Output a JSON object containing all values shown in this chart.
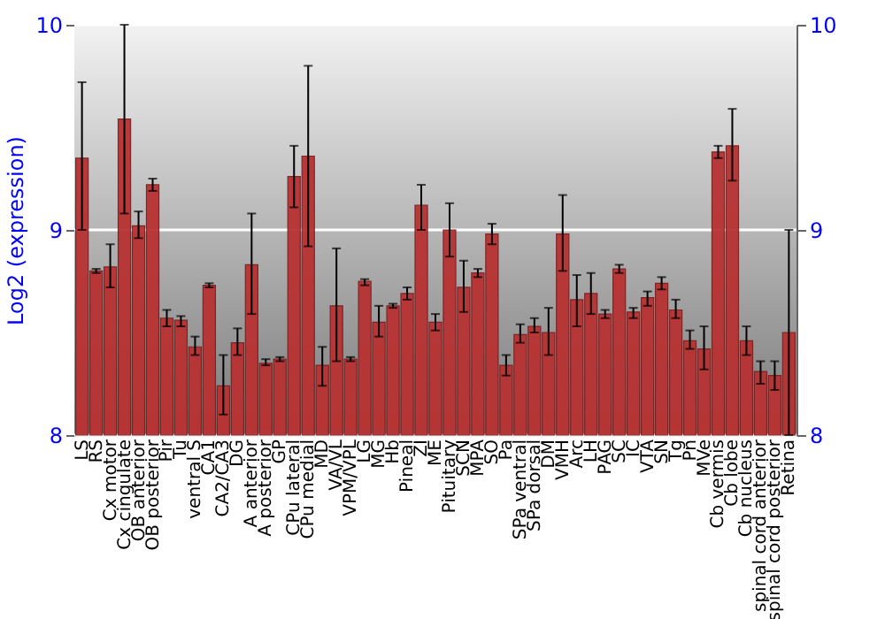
{
  "chart_data": {
    "type": "bar",
    "ylabel": "Log2 (expression)",
    "categories": [
      "LS",
      "RS",
      "Cx motor",
      "Cx cingulate",
      "OB anterior",
      "OB posterior",
      "Pir",
      "Tu",
      "ventral S",
      "CA1",
      "CA2/CA3",
      "DG",
      "A anterior",
      "A posterior",
      "GP",
      "CPu lateral",
      "CPu medial",
      "MD",
      "VA/VL",
      "VPM/VPL",
      "LG",
      "MG",
      "Hb",
      "Pineal",
      "ZI",
      "ME",
      "Pituitary",
      "SCN",
      "MPA",
      "SO",
      "Pa",
      "SPa ventral",
      "SPa dorsal",
      "DM",
      "VMH",
      "Arc",
      "LH",
      "PAG",
      "SC",
      "IC",
      "VTA",
      "SN",
      "Tg",
      "Pn",
      "MVe",
      "Cb vermis",
      "Cb lobe",
      "Cb nucleus",
      "spinal cord anterior",
      "spinal cord posterior",
      "Retina"
    ],
    "values": [
      9.35,
      8.8,
      8.82,
      9.54,
      9.02,
      9.22,
      8.57,
      8.56,
      8.43,
      8.73,
      8.24,
      8.45,
      8.83,
      8.35,
      8.37,
      9.26,
      9.36,
      8.34,
      8.63,
      8.37,
      8.75,
      8.55,
      8.63,
      8.69,
      9.12,
      8.55,
      9.0,
      8.72,
      8.79,
      8.98,
      8.34,
      8.49,
      8.53,
      8.5,
      8.98,
      8.66,
      8.69,
      8.59,
      8.81,
      8.6,
      8.67,
      8.74,
      8.61,
      8.46,
      8.42,
      9.38,
      9.41,
      8.46,
      8.31,
      8.29,
      8.5
    ],
    "errors": [
      [
        9.0,
        9.72
      ],
      [
        8.79,
        8.81
      ],
      [
        8.72,
        8.93
      ],
      [
        9.08,
        10.0
      ],
      [
        8.96,
        9.09
      ],
      [
        9.19,
        9.25
      ],
      [
        8.53,
        8.61
      ],
      [
        8.53,
        8.58
      ],
      [
        8.39,
        8.48
      ],
      [
        8.72,
        8.74
      ],
      [
        8.1,
        8.39
      ],
      [
        8.39,
        8.52
      ],
      [
        8.59,
        9.08
      ],
      [
        8.34,
        8.37
      ],
      [
        8.36,
        8.38
      ],
      [
        9.11,
        9.41
      ],
      [
        8.92,
        9.8
      ],
      [
        8.24,
        8.43
      ],
      [
        8.36,
        8.91
      ],
      [
        8.36,
        8.38
      ],
      [
        8.73,
        8.76
      ],
      [
        8.48,
        8.63
      ],
      [
        8.62,
        8.64
      ],
      [
        8.66,
        8.72
      ],
      [
        9.0,
        9.22
      ],
      [
        8.51,
        8.59
      ],
      [
        8.87,
        9.13
      ],
      [
        8.6,
        8.85
      ],
      [
        8.77,
        8.81
      ],
      [
        8.93,
        9.03
      ],
      [
        8.29,
        8.39
      ],
      [
        8.45,
        8.54
      ],
      [
        8.5,
        8.57
      ],
      [
        8.39,
        8.62
      ],
      [
        8.8,
        9.17
      ],
      [
        8.53,
        8.78
      ],
      [
        8.59,
        8.79
      ],
      [
        8.57,
        8.61
      ],
      [
        8.79,
        8.83
      ],
      [
        8.57,
        8.62
      ],
      [
        8.63,
        8.7
      ],
      [
        8.71,
        8.77
      ],
      [
        8.57,
        8.66
      ],
      [
        8.42,
        8.51
      ],
      [
        8.32,
        8.53
      ],
      [
        9.35,
        9.41
      ],
      [
        9.24,
        9.59
      ],
      [
        8.39,
        8.53
      ],
      [
        8.25,
        8.36
      ],
      [
        8.22,
        8.36
      ],
      [
        8.0,
        9.0
      ]
    ],
    "color": "#b83232",
    "ylim": [
      8,
      10
    ],
    "yticks": [
      8,
      9,
      10
    ],
    "y2lim": [
      8,
      10
    ],
    "y2ticks": [
      8,
      9,
      10
    ],
    "grid": "y"
  }
}
